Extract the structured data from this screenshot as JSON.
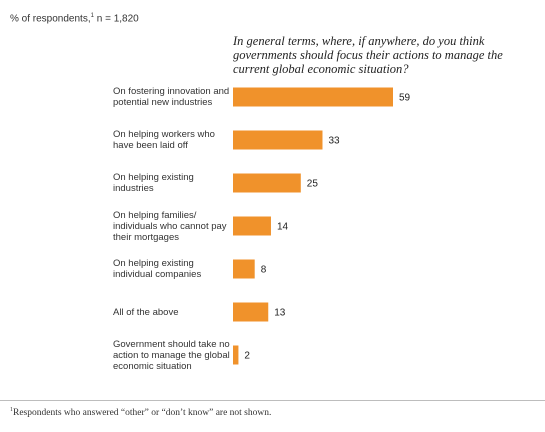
{
  "respondents": {
    "label": "% of respondents,",
    "sup": "1",
    "n": " n = 1,820"
  },
  "question": "In general terms, where, if anywhere, do you think governments should focus their actions to manage the current global economic situation?",
  "chart_data": {
    "type": "bar",
    "orientation": "horizontal",
    "categories": [
      "On fostering innovation and potential new industries",
      "On helping workers who have been laid off",
      "On helping existing industries",
      "On helping families/ individuals who cannot pay their mortgages",
      "On helping existing individual companies",
      "All of the above",
      "Government should take no action to manage the global economic situation"
    ],
    "values": [
      59,
      33,
      25,
      14,
      8,
      13,
      2
    ],
    "title": "In general terms, where, if anywhere, do you think governments should focus their actions to manage the current global economic situation?",
    "xlabel": "",
    "ylabel": "% of respondents",
    "grid": false,
    "bar_color": "#f0922b"
  },
  "footnote": {
    "sup": "1",
    "text": "Respondents who answered “other” or “don’t know” are not shown."
  }
}
